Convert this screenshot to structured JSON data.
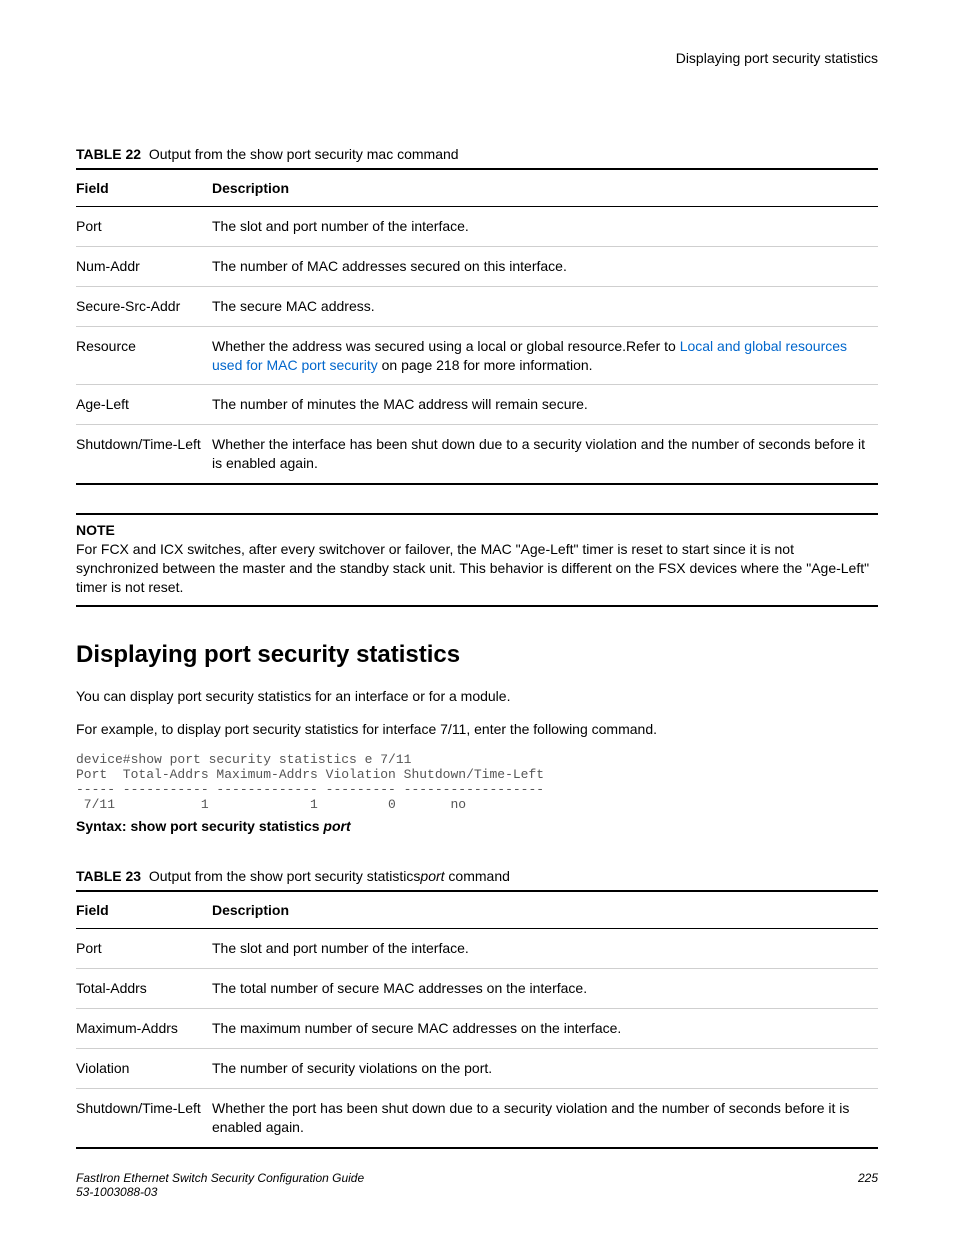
{
  "running_head": "Displaying port security statistics",
  "table22": {
    "label": "TABLE 22",
    "caption": "Output from the show port security mac command",
    "col_field": "Field",
    "col_desc": "Description",
    "rows": [
      {
        "field": "Port",
        "desc_pre": "The slot and port number of the interface.",
        "link": "",
        "desc_post": ""
      },
      {
        "field": "Num-Addr",
        "desc_pre": "The number of MAC addresses secured on this interface.",
        "link": "",
        "desc_post": ""
      },
      {
        "field": "Secure-Src-Addr",
        "desc_pre": "The secure MAC address.",
        "link": "",
        "desc_post": ""
      },
      {
        "field": "Resource",
        "desc_pre": "Whether the address was secured using a local or global resource.Refer to ",
        "link": "Local and global resources used for MAC port security",
        "desc_post": " on page 218 for more information."
      },
      {
        "field": "Age-Left",
        "desc_pre": "The number of minutes the MAC address will remain secure.",
        "link": "",
        "desc_post": ""
      },
      {
        "field": "Shutdown/Time-Left",
        "desc_pre": "Whether the interface has been shut down due to a security violation and the number of seconds before it is enabled again.",
        "link": "",
        "desc_post": ""
      }
    ]
  },
  "note": {
    "label": "NOTE",
    "text": "For FCX and ICX switches, after every switchover or failover, the MAC \"Age-Left\" timer is reset to start since it is not synchronized between the master and the standby stack unit. This behavior is different on the FSX devices where the \"Age-Left\" timer is not reset."
  },
  "section_title": "Displaying port security statistics",
  "para1": "You can display port security statistics for an interface or for a module.",
  "para2": "For example, to display port security statistics for interface 7/11, enter the following command.",
  "terminal": "device#show port security statistics e 7/11\nPort  Total-Addrs Maximum-Addrs Violation Shutdown/Time-Left\n----- ----------- ------------- --------- ------------------\n 7/11           1             1         0       no",
  "syntax": {
    "prefix": "Syntax: show port security statistics",
    "arg": "port"
  },
  "table23": {
    "label": "TABLE 23",
    "caption_pre": "Output from the show port security statistics",
    "caption_ital": "port",
    "caption_post": " command",
    "col_field": "Field",
    "col_desc": "Description",
    "rows": [
      {
        "field": "Port",
        "desc": "The slot and port number of the interface."
      },
      {
        "field": "Total-Addrs",
        "desc": "The total number of secure MAC addresses on the interface."
      },
      {
        "field": "Maximum-Addrs",
        "desc": "The maximum number of secure MAC addresses on the interface."
      },
      {
        "field": "Violation",
        "desc": "The number of security violations on the port."
      },
      {
        "field": "Shutdown/Time-Left",
        "desc": "Whether the port has been shut down due to a security violation and the number of seconds before it is enabled again."
      }
    ]
  },
  "footer": {
    "book": "FastIron Ethernet Switch Security Configuration Guide",
    "partno": "53-1003088-03",
    "page": "225"
  }
}
